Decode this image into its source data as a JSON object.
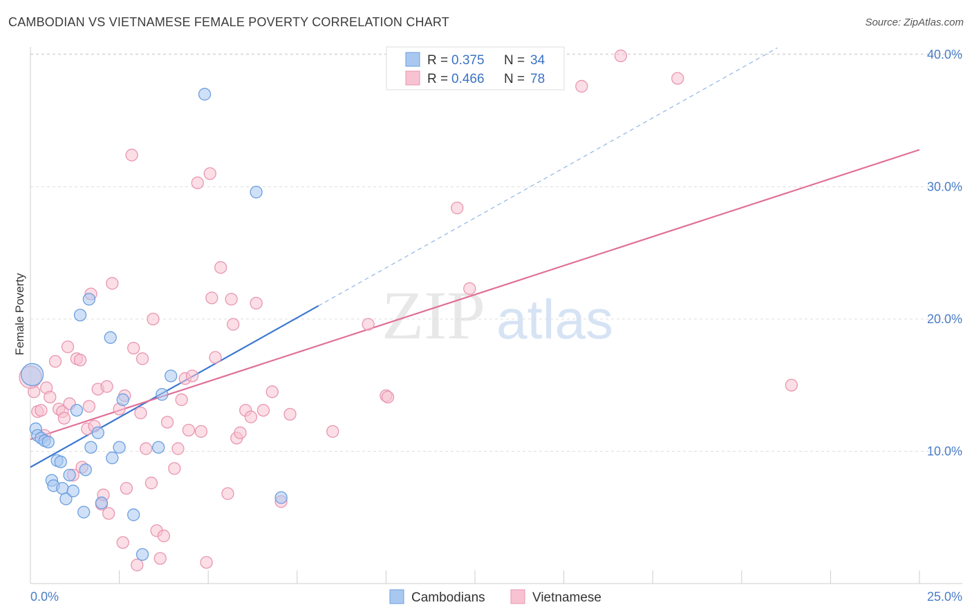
{
  "header": {
    "title": "CAMBODIAN VS VIETNAMESE FEMALE POVERTY CORRELATION CHART",
    "source": "Source: ZipAtlas.com"
  },
  "watermark": {
    "zip": "ZIP",
    "atlas": "atlas"
  },
  "colors": {
    "cambodian_fill": "#a9c8f0",
    "cambodian_stroke": "#6b9ee0",
    "cambodian_line": "#3a78d0",
    "vietnamese_fill": "#f7c2d1",
    "vietnamese_stroke": "#e896b0",
    "vietnamese_line": "#e07098",
    "axis_text": "#4a7cc7",
    "grid": "#dddddd"
  },
  "legend": {
    "rows": [
      {
        "r_label": "R = ",
        "r_value": "0.375",
        "n_label": "N = ",
        "n_value": "34"
      },
      {
        "r_label": "R = ",
        "r_value": "0.466",
        "n_label": "N = ",
        "n_value": "78"
      }
    ]
  },
  "chart_data": {
    "type": "scatter",
    "title": "CAMBODIAN VS VIETNAMESE FEMALE POVERTY CORRELATION CHART",
    "xlabel": "",
    "ylabel": "Female Poverty",
    "xlim": [
      0,
      25
    ],
    "ylim": [
      0,
      40
    ],
    "x_ticks": [
      0,
      25
    ],
    "x_tick_labels": [
      "0.0%",
      "25.0%"
    ],
    "y_ticks": [
      10,
      20,
      30,
      40
    ],
    "y_tick_labels": [
      "10.0%",
      "20.0%",
      "30.0%",
      "40.0%"
    ],
    "grid": true,
    "legend_position": "top-center",
    "series": [
      {
        "name": "Cambodians",
        "r": 0.375,
        "n": 34,
        "points": [
          [
            0.05,
            15.8
          ],
          [
            0.15,
            11.7
          ],
          [
            0.2,
            11.2
          ],
          [
            0.3,
            11.0
          ],
          [
            0.4,
            10.8
          ],
          [
            0.5,
            10.7
          ],
          [
            0.6,
            7.8
          ],
          [
            0.65,
            7.4
          ],
          [
            0.75,
            9.3
          ],
          [
            0.85,
            9.2
          ],
          [
            0.9,
            7.2
          ],
          [
            1.0,
            6.4
          ],
          [
            1.1,
            8.2
          ],
          [
            1.2,
            7.0
          ],
          [
            1.3,
            13.1
          ],
          [
            1.4,
            20.3
          ],
          [
            1.5,
            5.4
          ],
          [
            1.55,
            8.6
          ],
          [
            1.65,
            21.5
          ],
          [
            1.7,
            10.3
          ],
          [
            1.9,
            11.4
          ],
          [
            2.0,
            6.1
          ],
          [
            2.25,
            18.6
          ],
          [
            2.3,
            9.5
          ],
          [
            2.5,
            10.3
          ],
          [
            2.6,
            13.9
          ],
          [
            2.9,
            5.2
          ],
          [
            3.15,
            2.2
          ],
          [
            3.6,
            10.3
          ],
          [
            3.7,
            14.3
          ],
          [
            3.95,
            15.7
          ],
          [
            4.9,
            37.0
          ],
          [
            6.35,
            29.6
          ],
          [
            7.05,
            6.5
          ]
        ]
      },
      {
        "name": "Vietnamese",
        "r": 0.466,
        "n": 78,
        "points": [
          [
            0.1,
            14.5
          ],
          [
            0.2,
            13.0
          ],
          [
            0.3,
            13.1
          ],
          [
            0.4,
            11.2
          ],
          [
            0.45,
            14.8
          ],
          [
            0.55,
            14.1
          ],
          [
            0.7,
            16.8
          ],
          [
            0.8,
            13.2
          ],
          [
            0.9,
            13.0
          ],
          [
            0.95,
            12.5
          ],
          [
            1.05,
            17.9
          ],
          [
            1.1,
            13.6
          ],
          [
            1.2,
            8.2
          ],
          [
            1.3,
            17.0
          ],
          [
            1.4,
            16.9
          ],
          [
            1.45,
            8.8
          ],
          [
            1.6,
            11.7
          ],
          [
            1.65,
            13.4
          ],
          [
            1.7,
            21.9
          ],
          [
            1.8,
            11.9
          ],
          [
            1.9,
            14.7
          ],
          [
            2.0,
            6.0
          ],
          [
            2.05,
            6.7
          ],
          [
            2.15,
            14.9
          ],
          [
            2.2,
            5.3
          ],
          [
            2.3,
            22.7
          ],
          [
            2.5,
            13.2
          ],
          [
            2.6,
            3.1
          ],
          [
            2.65,
            14.2
          ],
          [
            2.7,
            7.2
          ],
          [
            2.85,
            32.4
          ],
          [
            2.9,
            17.8
          ],
          [
            3.0,
            1.4
          ],
          [
            3.1,
            12.9
          ],
          [
            3.15,
            17.0
          ],
          [
            3.25,
            10.2
          ],
          [
            3.4,
            7.6
          ],
          [
            3.45,
            20.0
          ],
          [
            3.55,
            4.0
          ],
          [
            3.65,
            1.9
          ],
          [
            3.75,
            3.6
          ],
          [
            3.85,
            12.2
          ],
          [
            4.05,
            8.7
          ],
          [
            4.15,
            10.2
          ],
          [
            4.25,
            13.9
          ],
          [
            4.35,
            15.5
          ],
          [
            4.45,
            11.6
          ],
          [
            4.55,
            15.7
          ],
          [
            4.7,
            30.3
          ],
          [
            4.8,
            11.5
          ],
          [
            4.95,
            1.6
          ],
          [
            5.05,
            31.0
          ],
          [
            5.1,
            21.6
          ],
          [
            5.2,
            17.1
          ],
          [
            5.35,
            23.9
          ],
          [
            5.55,
            6.8
          ],
          [
            5.65,
            21.5
          ],
          [
            5.7,
            19.6
          ],
          [
            5.8,
            11.0
          ],
          [
            5.9,
            11.4
          ],
          [
            6.05,
            13.1
          ],
          [
            6.2,
            12.6
          ],
          [
            6.35,
            21.2
          ],
          [
            6.55,
            13.1
          ],
          [
            6.8,
            14.5
          ],
          [
            7.05,
            6.2
          ],
          [
            7.3,
            12.8
          ],
          [
            8.5,
            11.5
          ],
          [
            9.5,
            19.6
          ],
          [
            10.0,
            14.2
          ],
          [
            10.05,
            14.1
          ],
          [
            12.0,
            28.4
          ],
          [
            12.35,
            22.3
          ],
          [
            15.5,
            37.6
          ],
          [
            16.6,
            39.9
          ],
          [
            18.2,
            38.2
          ],
          [
            21.4,
            15.0
          ],
          [
            0.0,
            15.6
          ]
        ]
      }
    ],
    "trend_lines": [
      {
        "series": "Cambodians",
        "solid": [
          [
            0,
            8.8
          ],
          [
            8.1,
            21.0
          ]
        ],
        "dashed": [
          [
            8.1,
            21.0
          ],
          [
            21.0,
            40.5
          ]
        ]
      },
      {
        "series": "Vietnamese",
        "solid": [
          [
            0,
            10.9
          ],
          [
            25,
            32.8
          ]
        ]
      }
    ]
  }
}
